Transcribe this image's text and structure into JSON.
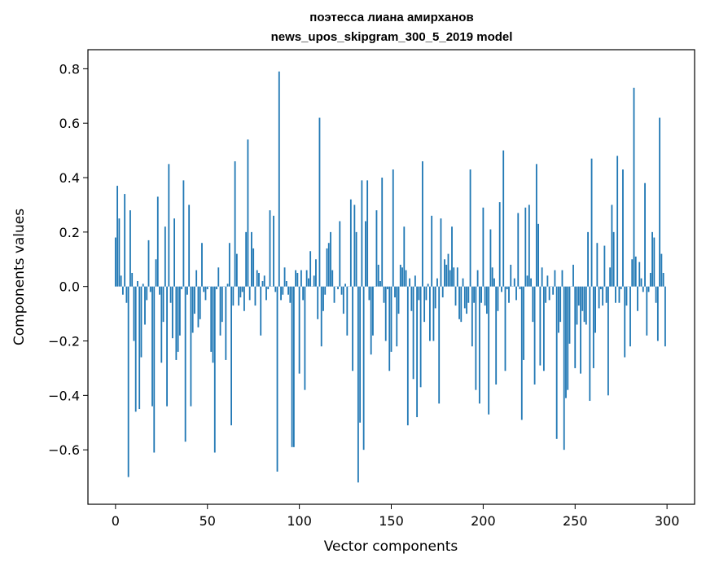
{
  "chart_data": {
    "type": "bar",
    "title": "поэтесса лиана амирханов",
    "subtitle": "news_upos_skipgram_300_5_2019 model",
    "xlabel": "Vector components",
    "ylabel": "Components values",
    "xlim": [
      -15,
      315
    ],
    "ylim": [
      -0.8,
      0.87
    ],
    "xticks": [
      0,
      50,
      100,
      150,
      200,
      250,
      300
    ],
    "yticks": [
      -0.6,
      -0.4,
      -0.2,
      0.0,
      0.2,
      0.4,
      0.6,
      0.8
    ],
    "ytick_labels": [
      "−0.6",
      "−0.4",
      "−0.2",
      "0.0",
      "0.2",
      "0.4",
      "0.6",
      "0.8"
    ],
    "grid": false,
    "bar_color": "#1f77b4",
    "values": [
      0.18,
      0.37,
      0.25,
      0.04,
      -0.03,
      0.34,
      -0.06,
      -0.7,
      0.28,
      0.05,
      -0.2,
      -0.46,
      0.02,
      -0.45,
      -0.26,
      0.01,
      -0.14,
      -0.05,
      0.17,
      -0.02,
      -0.44,
      -0.61,
      0.1,
      0.33,
      -0.03,
      -0.28,
      -0.13,
      0.22,
      -0.44,
      0.45,
      -0.06,
      -0.19,
      0.25,
      -0.27,
      -0.24,
      -0.18,
      -0.01,
      0.39,
      -0.57,
      -0.03,
      0.3,
      -0.44,
      -0.17,
      -0.1,
      0.06,
      -0.15,
      -0.12,
      0.16,
      -0.02,
      -0.05,
      -0.01,
      0.0,
      -0.24,
      -0.28,
      -0.61,
      -0.01,
      0.07,
      -0.18,
      -0.13,
      0.0,
      -0.27,
      0.01,
      0.16,
      -0.51,
      -0.07,
      0.46,
      0.12,
      -0.07,
      -0.04,
      -0.02,
      -0.09,
      0.2,
      0.54,
      -0.05,
      0.2,
      0.14,
      -0.07,
      0.06,
      0.05,
      -0.18,
      0.02,
      0.04,
      -0.05,
      -0.01,
      0.28,
      0.0,
      0.26,
      -0.02,
      -0.68,
      0.79,
      -0.05,
      -0.03,
      0.07,
      0.02,
      -0.03,
      -0.06,
      -0.59,
      -0.59,
      0.06,
      0.05,
      -0.32,
      0.06,
      -0.05,
      -0.38,
      0.06,
      0.03,
      0.13,
      0.0,
      0.04,
      0.1,
      -0.12,
      0.62,
      -0.22,
      -0.09,
      -0.03,
      0.14,
      0.16,
      0.2,
      0.06,
      -0.06,
      0.0,
      -0.01,
      0.24,
      -0.03,
      -0.1,
      0.01,
      -0.18,
      0.0,
      0.32,
      -0.31,
      0.3,
      0.2,
      -0.72,
      -0.5,
      0.39,
      -0.6,
      0.24,
      0.39,
      -0.05,
      -0.25,
      -0.18,
      0.0,
      0.28,
      0.08,
      0.02,
      0.4,
      -0.06,
      -0.2,
      -0.01,
      -0.31,
      -0.24,
      0.43,
      -0.04,
      -0.22,
      -0.1,
      0.08,
      0.07,
      0.22,
      0.06,
      -0.51,
      0.03,
      -0.09,
      -0.34,
      0.04,
      -0.48,
      -0.05,
      -0.37,
      0.46,
      -0.13,
      -0.05,
      0.01,
      -0.2,
      0.26,
      -0.2,
      -0.08,
      0.03,
      -0.43,
      0.25,
      -0.04,
      0.1,
      0.08,
      0.12,
      0.06,
      0.22,
      0.07,
      -0.07,
      0.07,
      -0.12,
      -0.13,
      0.03,
      -0.08,
      -0.1,
      -0.06,
      0.43,
      -0.22,
      -0.06,
      -0.38,
      0.06,
      -0.43,
      -0.06,
      0.29,
      -0.07,
      -0.1,
      -0.47,
      0.21,
      0.07,
      0.03,
      -0.36,
      -0.09,
      0.31,
      -0.02,
      0.5,
      -0.31,
      -0.01,
      -0.06,
      0.08,
      0.0,
      0.03,
      -0.05,
      0.27,
      -0.01,
      -0.49,
      -0.27,
      0.29,
      0.04,
      0.3,
      0.03,
      -0.13,
      -0.36,
      0.45,
      0.23,
      -0.29,
      0.07,
      -0.31,
      -0.06,
      0.04,
      -0.05,
      0.0,
      -0.03,
      0.06,
      -0.56,
      -0.17,
      -0.13,
      0.06,
      -0.6,
      -0.41,
      -0.38,
      -0.21,
      0.0,
      0.08,
      -0.3,
      -0.14,
      -0.07,
      -0.32,
      -0.09,
      -0.13,
      -0.14,
      0.2,
      -0.42,
      0.47,
      -0.3,
      -0.17,
      0.16,
      -0.08,
      -0.01,
      -0.07,
      0.15,
      -0.06,
      -0.4,
      0.07,
      0.3,
      0.2,
      -0.06,
      0.48,
      -0.06,
      -0.01,
      0.43,
      -0.26,
      -0.07,
      0.0,
      -0.22,
      0.1,
      0.73,
      0.11,
      -0.09,
      0.09,
      0.03,
      -0.02,
      0.38,
      -0.18,
      -0.02,
      0.05,
      0.2,
      0.18,
      -0.06,
      -0.2,
      0.62,
      0.12,
      0.05,
      -0.22
    ]
  }
}
